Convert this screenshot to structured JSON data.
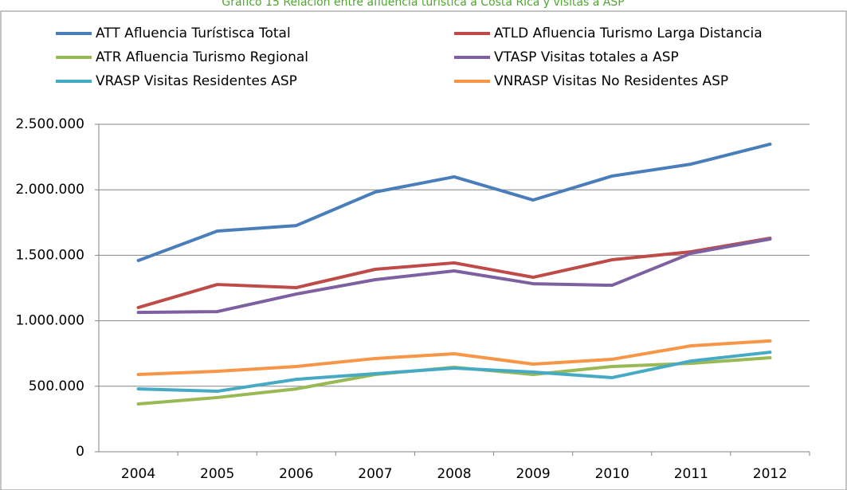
{
  "chart_data": {
    "type": "line",
    "title": "Gráfico 15 Relación entre afluencia turística a Costa Rica y visitas a ASP",
    "categories": [
      "2004",
      "2005",
      "2006",
      "2007",
      "2008",
      "2009",
      "2010",
      "2011",
      "2012"
    ],
    "series": [
      {
        "name": "ATT Afluencia Turístisca Total",
        "color": "#4a7ebb",
        "values": [
          1460000,
          1685000,
          1727000,
          1983000,
          2099000,
          1922000,
          2105000,
          2196000,
          2348000
        ]
      },
      {
        "name": "ATLD Afluencia Turismo Larga Distancia",
        "color": "#be4b48",
        "values": [
          1101000,
          1277000,
          1253000,
          1393000,
          1442000,
          1332000,
          1466000,
          1527000,
          1630000
        ]
      },
      {
        "name": "ATR Afluencia Turismo Regional",
        "color": "#98b954",
        "values": [
          365000,
          414000,
          480000,
          590000,
          645000,
          590000,
          651000,
          675000,
          718000
        ]
      },
      {
        "name": "VTASP Visitas totales a ASP",
        "color": "#7d60a0",
        "values": [
          1064000,
          1070000,
          1204000,
          1314000,
          1381000,
          1283000,
          1271000,
          1515000,
          1624000
        ]
      },
      {
        "name": "VRASP Visitas Residentes ASP",
        "color": "#46aac5",
        "values": [
          480000,
          462000,
          553000,
          596000,
          639000,
          608000,
          566000,
          693000,
          760000
        ]
      },
      {
        "name": "VNRASP Visitas No Residentes ASP",
        "color": "#f79646",
        "values": [
          590000,
          614000,
          651000,
          712000,
          748000,
          669000,
          706000,
          809000,
          846000
        ]
      }
    ],
    "ylim": [
      0,
      2500000
    ],
    "yticks": [
      0,
      {
        "value": 500000,
        "label": "500.000"
      },
      {
        "value": 1000000,
        "label": "1.000.000"
      },
      {
        "value": 1500000,
        "label": "1.500.000"
      },
      {
        "value": 2000000,
        "label": "2.000.000"
      },
      {
        "value": 2500000,
        "label": "2.500.000"
      }
    ],
    "grid": true
  }
}
